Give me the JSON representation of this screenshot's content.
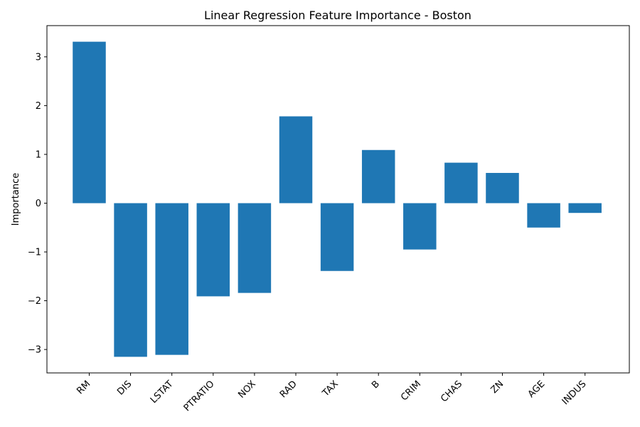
{
  "chart_data": {
    "type": "bar",
    "title": "Linear Regression Feature Importance - Boston",
    "xlabel": "",
    "ylabel": "Importance",
    "categories": [
      "RM",
      "DIS",
      "LSTAT",
      "PTRATIO",
      "NOX",
      "RAD",
      "TAX",
      "B",
      "CRIM",
      "CHAS",
      "ZN",
      "AGE",
      "INDUS"
    ],
    "values": [
      3.31,
      -3.15,
      -3.11,
      -1.91,
      -1.84,
      1.78,
      -1.39,
      1.09,
      -0.95,
      0.83,
      0.62,
      -0.5,
      -0.2
    ],
    "ylim": [
      -3.48,
      3.64
    ],
    "yticks": [
      -3,
      -2,
      -1,
      0,
      1,
      2,
      3
    ],
    "ytick_labels": [
      "−3",
      "−2",
      "−1",
      "0",
      "1",
      "2",
      "3"
    ],
    "bar_color": "#1f77b4",
    "grid": false,
    "legend": "none"
  }
}
